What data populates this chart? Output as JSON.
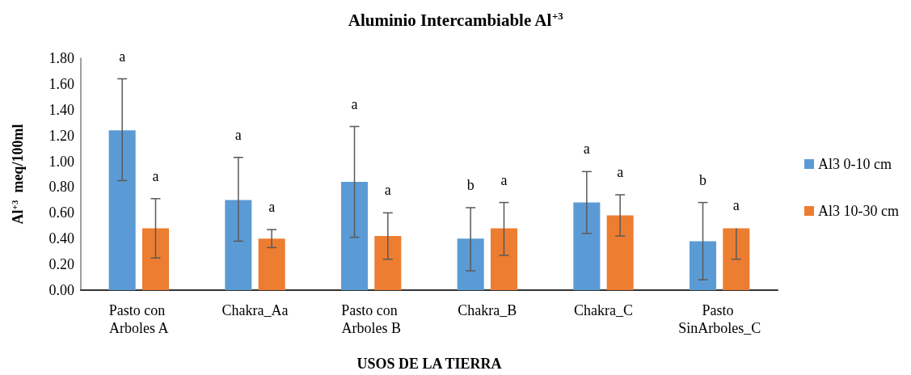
{
  "chart_data": {
    "type": "bar",
    "title": "Aluminio Intercambiable Al$^{+3}$",
    "xlabel": "USOS DE LA TIERRA",
    "ylabel": "Al$^{+3}$  meq/100ml",
    "categories": [
      "Pasto con Arboles A",
      "Chakra_Aa",
      "Pasto con Arboles B",
      "Chakra_B",
      "Chakra_C",
      "Pasto SinArboles_C"
    ],
    "series": [
      {
        "name": "Al3 0-10 cm",
        "color": "#5b9bd5",
        "values": [
          1.24,
          0.7,
          0.84,
          0.4,
          0.68,
          0.38
        ],
        "errors": [
          [
            0.85,
            1.64
          ],
          [
            0.38,
            1.03
          ],
          [
            0.41,
            1.27
          ],
          [
            0.15,
            0.64
          ],
          [
            0.44,
            0.92
          ],
          [
            0.08,
            0.68
          ]
        ]
      },
      {
        "name": "Al3 10-30 cm",
        "color": "#ed7d31",
        "values": [
          0.48,
          0.4,
          0.42,
          0.48,
          0.58,
          0.48
        ],
        "errors": [
          [
            0.25,
            0.71
          ],
          [
            0.33,
            0.47
          ],
          [
            0.24,
            0.6
          ],
          [
            0.27,
            0.68
          ],
          [
            0.42,
            0.74
          ],
          [
            0.24,
            0.48
          ]
        ]
      }
    ],
    "annotations": [
      "a",
      "a",
      "a",
      "a",
      "a",
      "a",
      "b",
      "a",
      "a",
      "a",
      "b",
      "a"
    ],
    "ylim": [
      0,
      1.8
    ],
    "yticks": [
      {
        "value": 0,
        "label": "0.00"
      },
      {
        "value": 0.2,
        "label": "0.20"
      },
      {
        "value": 0.4,
        "label": "0.40"
      },
      {
        "value": 0.6,
        "label": "0.60"
      },
      {
        "value": 0.8,
        "label": "0.80"
      },
      {
        "value": 1.0,
        "label": "1.00"
      },
      {
        "value": 1.2,
        "label": "1.20"
      },
      {
        "value": 1.4,
        "label": "1.40"
      },
      {
        "value": 1.6,
        "label": "1.60"
      },
      {
        "value": 1.8,
        "label": "1.80"
      }
    ],
    "grid": false,
    "legend": "right"
  }
}
